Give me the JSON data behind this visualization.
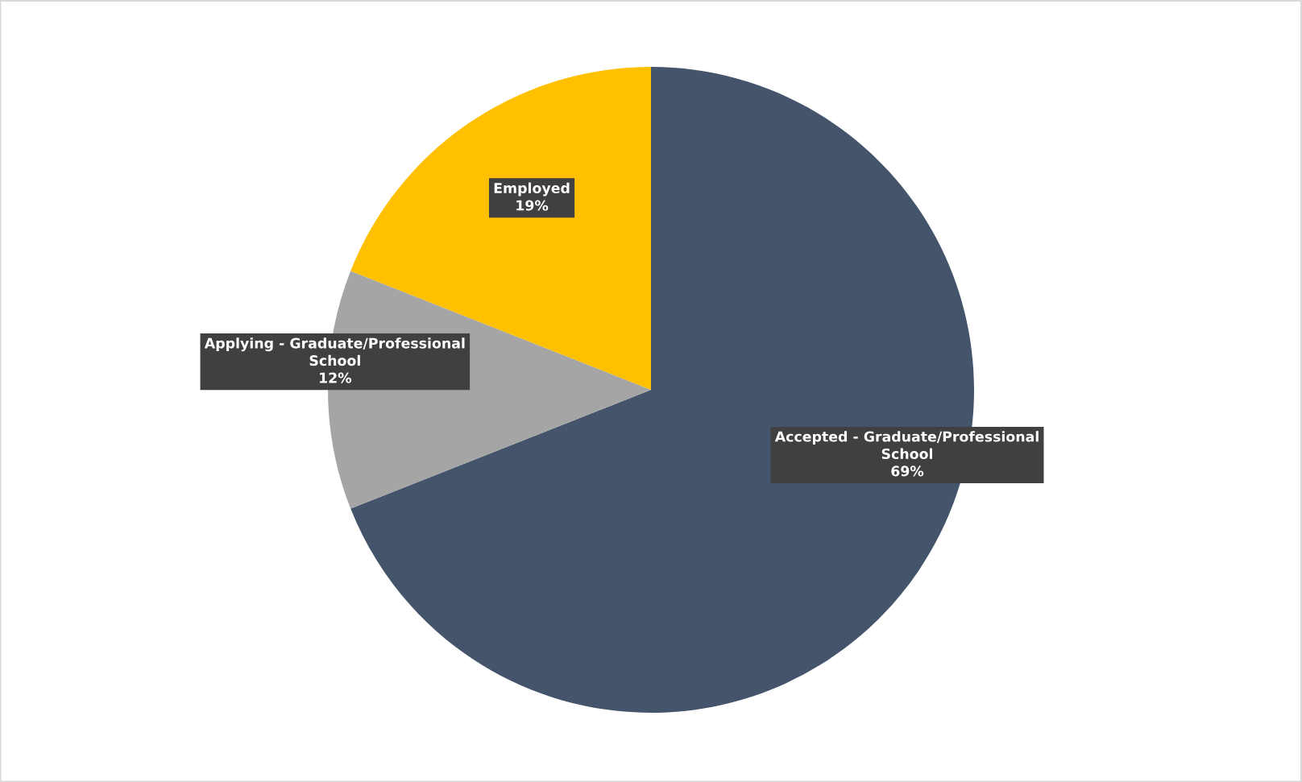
{
  "chart_data": {
    "type": "pie",
    "categories": [
      "Accepted - Graduate/Professional School",
      "Applying - Graduate/Professional School",
      "Employed"
    ],
    "values": [
      69,
      12,
      19
    ],
    "colors": [
      "#44546a",
      "#a5a5a5",
      "#ffc000"
    ],
    "value_labels": [
      "69%",
      "12%",
      "19%"
    ]
  }
}
